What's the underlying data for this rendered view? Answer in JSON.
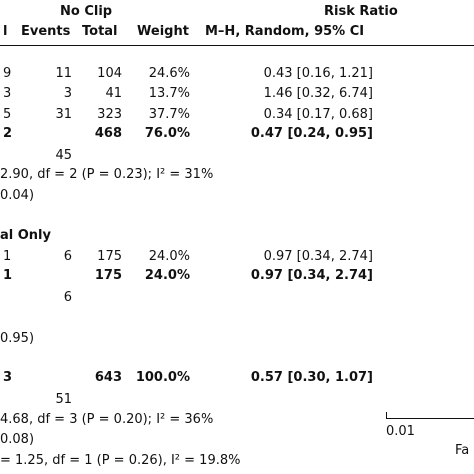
{
  "header": {
    "group_no_clip": "No Clip",
    "group_risk_ratio": "Risk Ratio",
    "col_total_left_fragment": "l",
    "col_events": "Events",
    "col_total": "Total",
    "col_weight": "Weight",
    "col_method": "M–H, Random, 95% CI"
  },
  "subgroup1": {
    "rows": [
      {
        "left": "9",
        "events": "11",
        "total": "104",
        "weight": "24.6%",
        "ci": "0.43 [0.16, 1.21]"
      },
      {
        "left": "3",
        "events": "3",
        "total": "41",
        "weight": "13.7%",
        "ci": "1.46 [0.32, 6.74]"
      },
      {
        "left": "5",
        "events": "31",
        "total": "323",
        "weight": "37.7%",
        "ci": "0.34 [0.17, 0.68]"
      }
    ],
    "subtotal": {
      "left": "2",
      "total": "468",
      "weight": "76.0%",
      "ci": "0.47 [0.24, 0.95]"
    },
    "events_total": "45",
    "heterogeneity": "2.90, df = 2 (P = 0.23); I² = 31%",
    "overall_effect": "0.04)"
  },
  "subgroup2": {
    "title": "al Only",
    "rows": [
      {
        "left": "1",
        "events": "6",
        "total": "175",
        "weight": "24.0%",
        "ci": "0.97 [0.34, 2.74]"
      }
    ],
    "subtotal": {
      "left": "1",
      "total": "175",
      "weight": "24.0%",
      "ci": "0.97 [0.34, 2.74]"
    },
    "events_total": "6",
    "overall_effect": "0.95)"
  },
  "total": {
    "left": "3",
    "total": "643",
    "weight": "100.0%",
    "ci": "0.57 [0.30, 1.07]",
    "events_total": "51",
    "heterogeneity": "4.68, df = 3 (P = 0.20); I² = 36%",
    "overall_effect": "0.08)",
    "subgroup_diff": "= 1.25, df = 1 (P = 0.26), I² = 19.8%"
  },
  "axis": {
    "tick_001": "0.01",
    "label_fragment": "Fa"
  }
}
